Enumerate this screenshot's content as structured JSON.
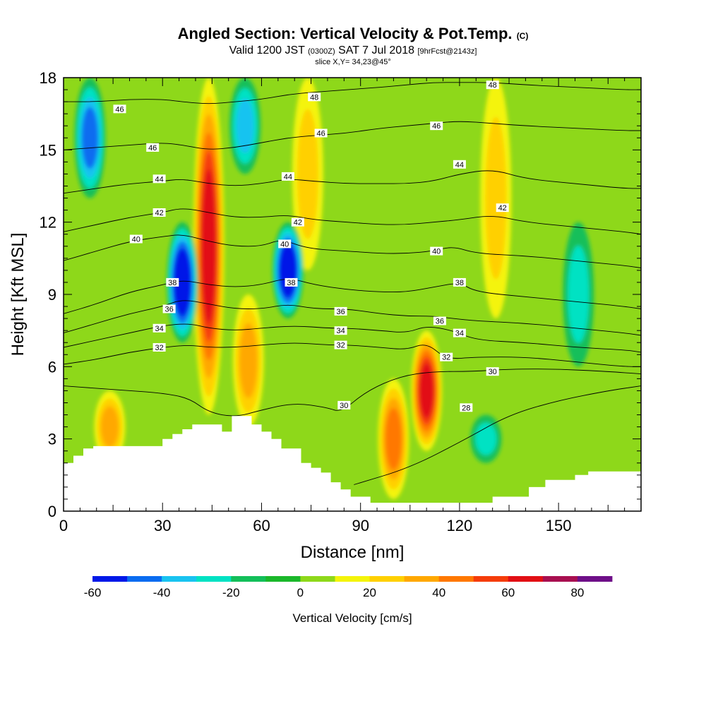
{
  "header": {
    "title": "Angled Section: Vertical Velocity & Pot.Temp.",
    "title_unit": "(C)",
    "valid_prefix": "Valid 1200 JST",
    "valid_utc": "(0300Z)",
    "valid_date": "SAT 7 Jul 2018",
    "forecast": "[9hrFcst@2143z]",
    "slice": "slice X,Y= 34,23@45°"
  },
  "chart_data": {
    "type": "heatmap",
    "title": "Angled Section: Vertical Velocity & Pot.Temp. (C)",
    "xlabel": "Distance [nm]",
    "ylabel": "Height [Kft MSL]",
    "xlim": [
      0,
      175
    ],
    "ylim": [
      0,
      18
    ],
    "x_ticks": [
      "0",
      "30",
      "60",
      "90",
      "120",
      "150"
    ],
    "x_tick_values": [
      0,
      30,
      60,
      90,
      120,
      150
    ],
    "y_ticks": [
      "0",
      "3",
      "6",
      "9",
      "12",
      "15",
      "18"
    ],
    "y_tick_values": [
      0,
      3,
      6,
      9,
      12,
      15,
      18
    ],
    "colorbar": {
      "label": "Vertical Velocity [cm/s]",
      "tick_labels": [
        "-60",
        "-40",
        "-20",
        "0",
        "20",
        "40",
        "60",
        "80"
      ],
      "tick_values": [
        -60,
        -40,
        -20,
        0,
        20,
        40,
        60,
        80
      ],
      "bins": [
        -60,
        -50,
        -40,
        -30,
        -20,
        -10,
        0,
        10,
        20,
        30,
        40,
        50,
        60,
        70,
        80,
        90
      ],
      "colors": [
        "#0018e8",
        "#0a6cf0",
        "#19c3f0",
        "#00e2c3",
        "#13bf5a",
        "#1ab82a",
        "#8ed81a",
        "#f4f40a",
        "#ffd000",
        "#ffa800",
        "#ff7800",
        "#f53c0a",
        "#e20f14",
        "#a80f50",
        "#6e0f88"
      ]
    },
    "updrafts_cm_s": [
      {
        "x": 14,
        "y_range": [
          2,
          5
        ],
        "max": 30
      },
      {
        "x": 44,
        "y_range": [
          4,
          18
        ],
        "max": 60
      },
      {
        "x": 56,
        "y_range": [
          3.5,
          9
        ],
        "max": 30
      },
      {
        "x": 74,
        "y_range": [
          10,
          18
        ],
        "max": 20
      },
      {
        "x": 100,
        "y_range": [
          0.5,
          5.5
        ],
        "max": 40
      },
      {
        "x": 110,
        "y_range": [
          2.5,
          7.5
        ],
        "max": 60
      },
      {
        "x": 131,
        "y_range": [
          8,
          18
        ],
        "max": 20
      }
    ],
    "downdrafts_cm_s": [
      {
        "x": 36,
        "y_range": [
          7,
          12
        ],
        "min": -60
      },
      {
        "x": 68,
        "y_range": [
          8,
          12
        ],
        "min": -60
      },
      {
        "x": 8,
        "y_range": [
          13,
          18
        ],
        "min": -40
      },
      {
        "x": 55,
        "y_range": [
          14,
          18
        ],
        "min": -30
      },
      {
        "x": 156,
        "y_range": [
          6,
          12
        ],
        "min": -20
      },
      {
        "x": 128,
        "y_range": [
          2,
          4
        ],
        "min": -20
      }
    ],
    "pot_temp_isotherms": [
      {
        "label": "28",
        "x": [
          88,
          105,
          122,
          135,
          150,
          165,
          175
        ],
        "y": [
          1.1,
          1.8,
          3.0,
          4.0,
          4.6,
          5.0,
          5.2
        ]
      },
      {
        "label": "30",
        "x": [
          0,
          10,
          20,
          30,
          38,
          44,
          52,
          60,
          70,
          80,
          84,
          92,
          102,
          112,
          124,
          135,
          150,
          165,
          175
        ],
        "y": [
          5.2,
          5.1,
          5.0,
          4.9,
          4.7,
          4.1,
          3.9,
          4.2,
          4.5,
          4.3,
          4.1,
          5.0,
          5.6,
          5.8,
          5.8,
          5.9,
          5.9,
          5.8,
          5.7
        ]
      },
      {
        "label": "32",
        "x": [
          0,
          10,
          20,
          30,
          38,
          44,
          52,
          60,
          70,
          80,
          86,
          96,
          104,
          110,
          116,
          125,
          140,
          155,
          170,
          175
        ],
        "y": [
          6.1,
          6.3,
          6.6,
          6.8,
          6.9,
          6.8,
          6.8,
          6.9,
          7.0,
          6.9,
          6.9,
          6.8,
          6.7,
          7.0,
          6.3,
          6.4,
          6.4,
          6.2,
          6.0,
          6.0
        ]
      },
      {
        "label": "34",
        "x": [
          0,
          10,
          20,
          30,
          38,
          44,
          52,
          60,
          70,
          80,
          86,
          96,
          104,
          110,
          118,
          125,
          140,
          155,
          170,
          175
        ],
        "y": [
          6.8,
          7.1,
          7.4,
          7.7,
          7.8,
          7.6,
          7.5,
          7.6,
          7.7,
          7.6,
          7.6,
          7.5,
          7.4,
          7.7,
          7.5,
          7.1,
          7.0,
          6.8,
          6.7,
          6.6
        ]
      },
      {
        "label": "36",
        "x": [
          0,
          10,
          20,
          30,
          36,
          44,
          52,
          60,
          68,
          76,
          86,
          96,
          104,
          112,
          118,
          125,
          140,
          155,
          170,
          175
        ],
        "y": [
          7.4,
          7.8,
          8.2,
          8.5,
          8.8,
          8.6,
          8.4,
          8.4,
          8.6,
          8.4,
          8.4,
          8.2,
          8.1,
          8.1,
          8.0,
          7.9,
          7.8,
          7.6,
          7.4,
          7.3
        ]
      },
      {
        "label": "38",
        "x": [
          0,
          10,
          20,
          30,
          36,
          44,
          52,
          60,
          68,
          76,
          86,
          96,
          104,
          112,
          120,
          125,
          140,
          155,
          170,
          175
        ],
        "y": [
          8.2,
          8.6,
          9.1,
          9.4,
          9.6,
          9.4,
          9.3,
          9.4,
          9.7,
          9.4,
          9.2,
          9.1,
          9.1,
          9.3,
          9.5,
          9.1,
          8.9,
          8.7,
          8.5,
          8.4
        ]
      },
      {
        "label": "40",
        "x": [
          0,
          10,
          20,
          30,
          36,
          44,
          52,
          60,
          66,
          74,
          86,
          96,
          104,
          112,
          118,
          125,
          140,
          155,
          170,
          175
        ],
        "y": [
          10.4,
          10.8,
          11.2,
          11.4,
          11.5,
          11.2,
          11.0,
          11.0,
          11.3,
          10.9,
          10.8,
          10.7,
          10.7,
          10.8,
          11.0,
          10.7,
          10.6,
          10.4,
          10.2,
          10.1
        ]
      },
      {
        "label": "42",
        "x": [
          0,
          10,
          20,
          30,
          36,
          44,
          52,
          60,
          68,
          76,
          86,
          96,
          104,
          112,
          120,
          130,
          140,
          155,
          170,
          175
        ],
        "y": [
          11.6,
          11.9,
          12.2,
          12.4,
          12.6,
          12.4,
          12.2,
          12.2,
          12.3,
          12.1,
          12.0,
          11.9,
          11.9,
          12.0,
          12.1,
          12.3,
          12.0,
          11.8,
          11.6,
          11.5
        ]
      },
      {
        "label": "44",
        "x": [
          0,
          10,
          20,
          30,
          36,
          44,
          52,
          60,
          68,
          76,
          86,
          96,
          104,
          112,
          120,
          130,
          140,
          155,
          170,
          175
        ],
        "y": [
          13.2,
          13.4,
          13.6,
          13.7,
          13.8,
          13.6,
          13.5,
          13.6,
          13.8,
          13.7,
          13.6,
          13.6,
          13.6,
          13.7,
          14.0,
          14.2,
          13.8,
          13.6,
          13.4,
          13.4
        ]
      },
      {
        "label": "46",
        "x": [
          0,
          10,
          20,
          30,
          36,
          44,
          52,
          60,
          68,
          76,
          86,
          96,
          104,
          112,
          120,
          130,
          140,
          155,
          170,
          175
        ],
        "y": [
          15.0,
          15.1,
          15.2,
          15.3,
          15.2,
          15.0,
          15.1,
          15.3,
          15.5,
          15.6,
          15.7,
          15.9,
          16.0,
          16.1,
          16.2,
          16.1,
          16.0,
          15.9,
          15.8,
          15.8
        ]
      },
      {
        "label": "48",
        "x": [
          0,
          10,
          20,
          30,
          36,
          44,
          52,
          60,
          68,
          76,
          86,
          96,
          104,
          112,
          120,
          130,
          140,
          155,
          170,
          175
        ],
        "y": [
          17.0,
          17.0,
          17.1,
          17.1,
          17.0,
          16.9,
          17.0,
          17.1,
          17.3,
          17.4,
          17.5,
          17.6,
          17.7,
          17.8,
          17.8,
          17.8,
          17.7,
          17.6,
          17.5,
          17.5
        ]
      }
    ],
    "contour_labels": [
      {
        "text": "48",
        "x": 76,
        "y": 17.2
      },
      {
        "text": "48",
        "x": 130,
        "y": 17.7
      },
      {
        "text": "46",
        "x": 17,
        "y": 16.7
      },
      {
        "text": "46",
        "x": 27,
        "y": 15.1
      },
      {
        "text": "46",
        "x": 78,
        "y": 15.7
      },
      {
        "text": "46",
        "x": 113,
        "y": 16.0
      },
      {
        "text": "44",
        "x": 29,
        "y": 13.8
      },
      {
        "text": "44",
        "x": 68,
        "y": 13.9
      },
      {
        "text": "44",
        "x": 120,
        "y": 14.4
      },
      {
        "text": "42",
        "x": 29,
        "y": 12.4
      },
      {
        "text": "42",
        "x": 71,
        "y": 12.0
      },
      {
        "text": "42",
        "x": 133,
        "y": 12.6
      },
      {
        "text": "40",
        "x": 22,
        "y": 11.3
      },
      {
        "text": "40",
        "x": 67,
        "y": 11.1
      },
      {
        "text": "40",
        "x": 113,
        "y": 10.8
      },
      {
        "text": "38",
        "x": 33,
        "y": 9.5
      },
      {
        "text": "38",
        "x": 69,
        "y": 9.5
      },
      {
        "text": "38",
        "x": 120,
        "y": 9.5
      },
      {
        "text": "36",
        "x": 32,
        "y": 8.4
      },
      {
        "text": "36",
        "x": 84,
        "y": 8.3
      },
      {
        "text": "36",
        "x": 114,
        "y": 7.9
      },
      {
        "text": "34",
        "x": 29,
        "y": 7.6
      },
      {
        "text": "34",
        "x": 84,
        "y": 7.5
      },
      {
        "text": "34",
        "x": 120,
        "y": 7.4
      },
      {
        "text": "32",
        "x": 29,
        "y": 6.8
      },
      {
        "text": "32",
        "x": 84,
        "y": 6.9
      },
      {
        "text": "32",
        "x": 116,
        "y": 6.4
      },
      {
        "text": "30",
        "x": 85,
        "y": 4.4
      },
      {
        "text": "30",
        "x": 130,
        "y": 5.8
      },
      {
        "text": "28",
        "x": 122,
        "y": 4.3
      }
    ],
    "terrain_kft": {
      "x": [
        0,
        3,
        3,
        6,
        6,
        9,
        9,
        30,
        30,
        33,
        33,
        36,
        36,
        39,
        39,
        48,
        48,
        51,
        51,
        57,
        57,
        60,
        60,
        63,
        63,
        66,
        66,
        72,
        72,
        75,
        75,
        78,
        78,
        81,
        81,
        84,
        84,
        87,
        87,
        93,
        93,
        100,
        100,
        130,
        130,
        141,
        141,
        146,
        146,
        155,
        155,
        159,
        159,
        175
      ],
      "y": [
        2.0,
        2.0,
        2.3,
        2.3,
        2.6,
        2.6,
        2.7,
        2.7,
        3.0,
        3.0,
        3.2,
        3.2,
        3.4,
        3.4,
        3.6,
        3.6,
        3.3,
        3.3,
        3.95,
        3.95,
        3.6,
        3.6,
        3.3,
        3.3,
        3.0,
        3.0,
        2.6,
        2.6,
        2.0,
        2.0,
        1.8,
        1.8,
        1.6,
        1.6,
        1.2,
        1.2,
        0.9,
        0.9,
        0.6,
        0.6,
        0.35,
        0.35,
        0.35,
        0.35,
        0.6,
        0.6,
        1.0,
        1.0,
        1.3,
        1.3,
        1.5,
        1.5,
        1.65,
        1.65
      ]
    }
  }
}
